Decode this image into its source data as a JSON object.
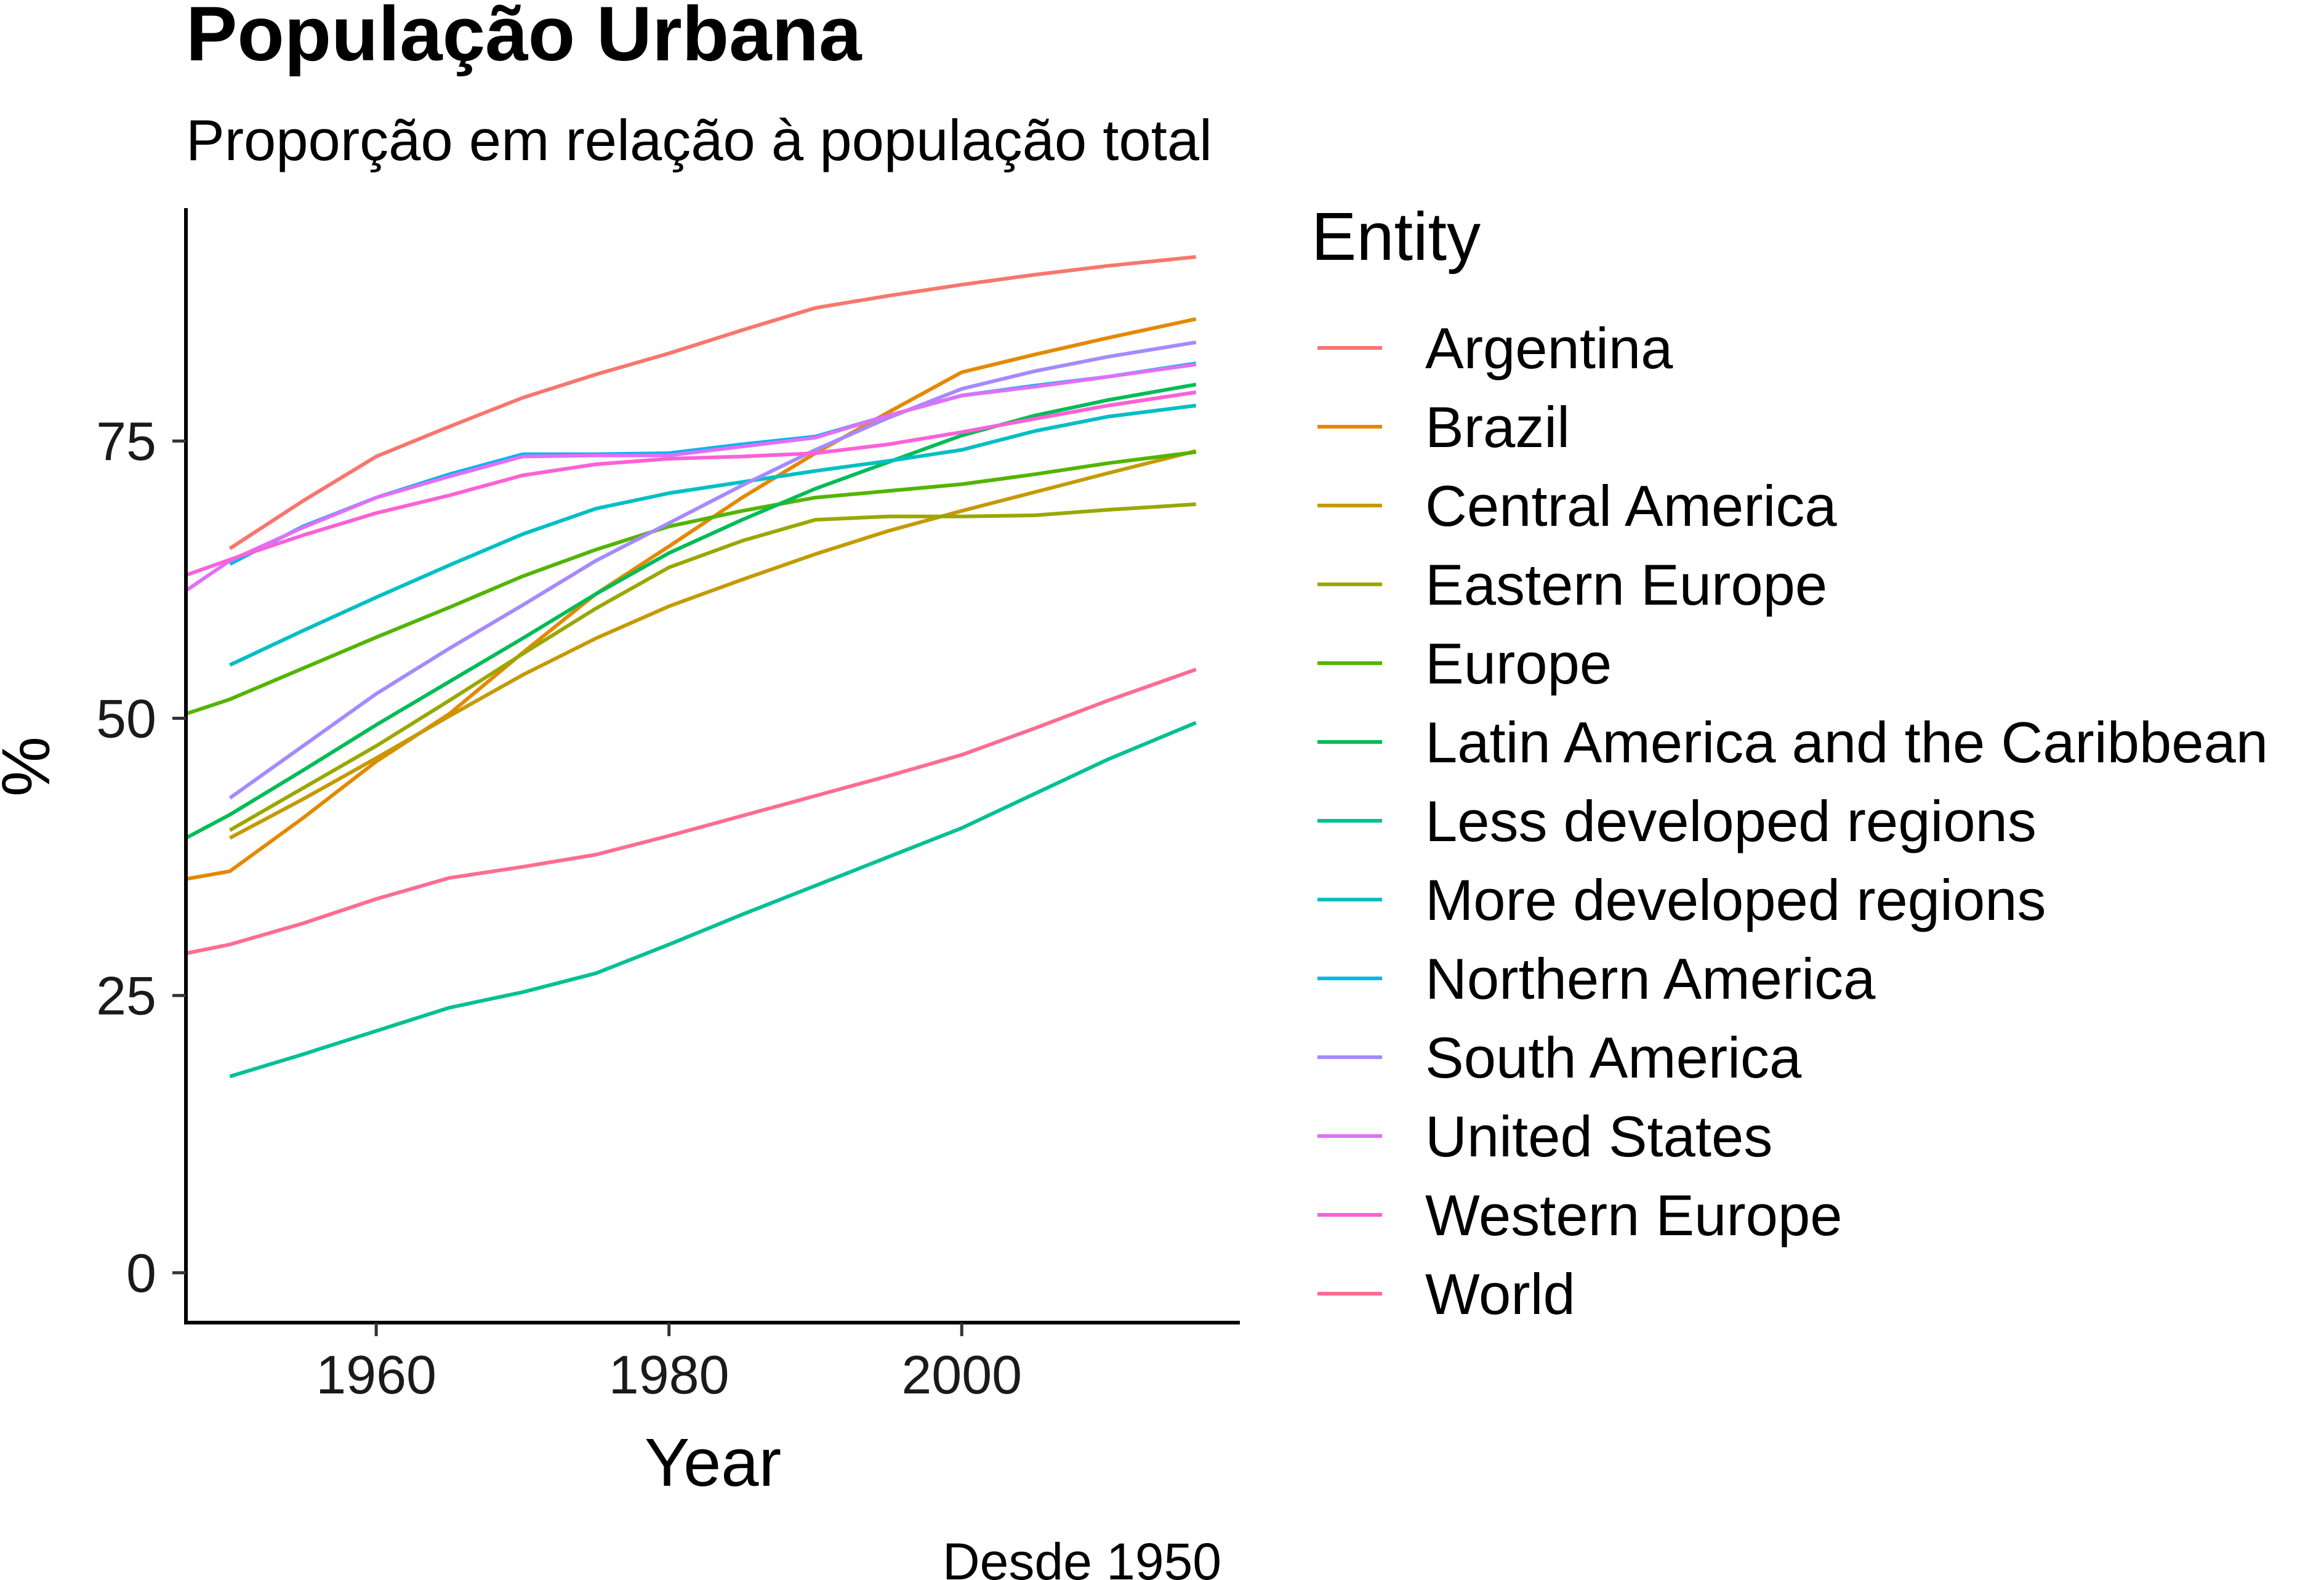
{
  "chart_data": {
    "type": "line",
    "title": "População Urbana",
    "subtitle": "Proporção em relação à população total",
    "xlabel": "Year",
    "ylabel": "%",
    "caption": "Desde 1950",
    "legend_title": "Entity",
    "legend_position": "right",
    "grid": false,
    "xlim": [
      1947,
      2019
    ],
    "ylim": [
      -4.5,
      96
    ],
    "x_ticks": [
      1960,
      1980,
      2000
    ],
    "x_tick_labels": [
      "1960",
      "1980",
      "2000"
    ],
    "y_ticks": [
      0,
      25,
      50,
      75
    ],
    "y_tick_labels": [
      "0",
      "25",
      "50",
      "75"
    ],
    "series": [
      {
        "name": "Argentina",
        "color": "#F8766D",
        "x": [
          1950,
          1955,
          1960,
          1965,
          1970,
          1975,
          1980,
          1985,
          1990,
          1995,
          2000,
          2005,
          2010,
          2016
        ],
        "y": [
          65.3,
          69.6,
          73.6,
          76.3,
          78.9,
          81.0,
          82.9,
          85.0,
          87.0,
          88.1,
          89.1,
          90.0,
          90.8,
          91.6
        ]
      },
      {
        "name": "Brazil",
        "color": "#E38900",
        "x": [
          1947,
          1950,
          1955,
          1960,
          1965,
          1970,
          1975,
          1980,
          1985,
          1990,
          1995,
          2000,
          2005,
          2010,
          2016
        ],
        "y": [
          35.5,
          36.2,
          41.0,
          46.1,
          50.4,
          55.9,
          61.2,
          65.5,
          69.9,
          73.9,
          77.6,
          81.2,
          82.8,
          84.3,
          86.0
        ]
      },
      {
        "name": "Central America",
        "color": "#C49A00",
        "x": [
          1950,
          1955,
          1960,
          1965,
          1970,
          1975,
          1980,
          1985,
          1990,
          1995,
          2000,
          2005,
          2010,
          2016
        ],
        "y": [
          39.2,
          42.7,
          46.4,
          50.2,
          53.9,
          57.2,
          60.1,
          62.5,
          64.8,
          66.9,
          68.7,
          70.4,
          72.1,
          74.1
        ]
      },
      {
        "name": "Eastern Europe",
        "color": "#99A800",
        "x": [
          1950,
          1955,
          1960,
          1965,
          1970,
          1975,
          1980,
          1985,
          1990,
          1995,
          2000,
          2005,
          2010,
          2016
        ],
        "y": [
          39.9,
          43.7,
          47.5,
          51.6,
          55.8,
          59.9,
          63.6,
          66.0,
          67.9,
          68.2,
          68.2,
          68.3,
          68.8,
          69.3
        ]
      },
      {
        "name": "Europe",
        "color": "#53B400",
        "x": [
          1947,
          1950,
          1955,
          1960,
          1965,
          1970,
          1975,
          1980,
          1985,
          1990,
          1995,
          2000,
          2005,
          2010,
          2016
        ],
        "y": [
          50.4,
          51.7,
          54.5,
          57.3,
          60.0,
          62.8,
          65.2,
          67.3,
          68.7,
          69.9,
          70.5,
          71.1,
          72.0,
          73.0,
          74.0
        ]
      },
      {
        "name": "Latin America and the Caribbean",
        "color": "#00BC56",
        "x": [
          1947,
          1950,
          1955,
          1960,
          1965,
          1970,
          1975,
          1980,
          1985,
          1990,
          1995,
          2000,
          2005,
          2010,
          2016
        ],
        "y": [
          39.2,
          41.3,
          45.3,
          49.4,
          53.3,
          57.2,
          61.2,
          64.9,
          67.9,
          70.7,
          73.1,
          75.5,
          77.3,
          78.7,
          80.1
        ]
      },
      {
        "name": "Less developed regions",
        "color": "#00C094",
        "x": [
          1950,
          1955,
          1960,
          1965,
          1970,
          1975,
          1980,
          1985,
          1990,
          1995,
          2000,
          2005,
          2010,
          2016
        ],
        "y": [
          17.7,
          19.7,
          21.8,
          23.9,
          25.3,
          27.0,
          29.6,
          32.3,
          34.9,
          37.5,
          40.1,
          43.2,
          46.3,
          49.6
        ]
      },
      {
        "name": "More developed regions",
        "color": "#00BFC4",
        "x": [
          1950,
          1955,
          1960,
          1965,
          1970,
          1975,
          1980,
          1985,
          1990,
          1995,
          2000,
          2005,
          2010,
          2016
        ],
        "y": [
          54.8,
          57.9,
          60.9,
          63.8,
          66.6,
          68.9,
          70.3,
          71.3,
          72.3,
          73.2,
          74.2,
          75.9,
          77.2,
          78.2
        ]
      },
      {
        "name": "Northern America",
        "color": "#00B6EB",
        "x": [
          1950,
          1955,
          1960,
          1965,
          1970,
          1975,
          1980,
          1985,
          1990,
          1995,
          2000,
          2005,
          2010,
          2016
        ],
        "y": [
          63.9,
          67.3,
          69.9,
          72.0,
          73.8,
          73.8,
          73.9,
          74.7,
          75.4,
          77.3,
          79.1,
          80.0,
          80.8,
          82.0
        ]
      },
      {
        "name": "South America",
        "color": "#A58AFF",
        "x": [
          1950,
          1955,
          1960,
          1965,
          1970,
          1975,
          1980,
          1985,
          1990,
          1995,
          2000,
          2005,
          2010,
          2016
        ],
        "y": [
          42.8,
          47.5,
          52.2,
          56.3,
          60.2,
          64.2,
          67.6,
          71.0,
          74.2,
          77.1,
          79.7,
          81.3,
          82.6,
          83.9
        ]
      },
      {
        "name": "United States",
        "color": "#DF70F8",
        "x": [
          1947,
          1950,
          1955,
          1960,
          1965,
          1970,
          1975,
          1980,
          1985,
          1990,
          1995,
          2000,
          2005,
          2010,
          2016
        ],
        "y": [
          61.5,
          64.2,
          67.2,
          69.9,
          71.8,
          73.6,
          73.7,
          73.7,
          74.5,
          75.3,
          77.3,
          79.1,
          79.9,
          80.8,
          81.9
        ]
      },
      {
        "name": "Western Europe",
        "color": "#FB61D7",
        "x": [
          1947,
          1950,
          1955,
          1960,
          1965,
          1970,
          1975,
          1980,
          1985,
          1990,
          1995,
          2000,
          2005,
          2010,
          2016
        ],
        "y": [
          62.9,
          64.3,
          66.5,
          68.5,
          70.1,
          71.9,
          72.9,
          73.4,
          73.6,
          73.9,
          74.7,
          75.8,
          77.0,
          78.2,
          79.4
        ]
      },
      {
        "name": "World",
        "color": "#FF6C91",
        "x": [
          1947,
          1950,
          1955,
          1960,
          1965,
          1970,
          1975,
          1980,
          1985,
          1990,
          1995,
          2000,
          2005,
          2010,
          2016
        ],
        "y": [
          28.8,
          29.6,
          31.5,
          33.7,
          35.6,
          36.6,
          37.7,
          39.4,
          41.2,
          43.0,
          44.8,
          46.7,
          49.1,
          51.6,
          54.4
        ]
      }
    ]
  }
}
